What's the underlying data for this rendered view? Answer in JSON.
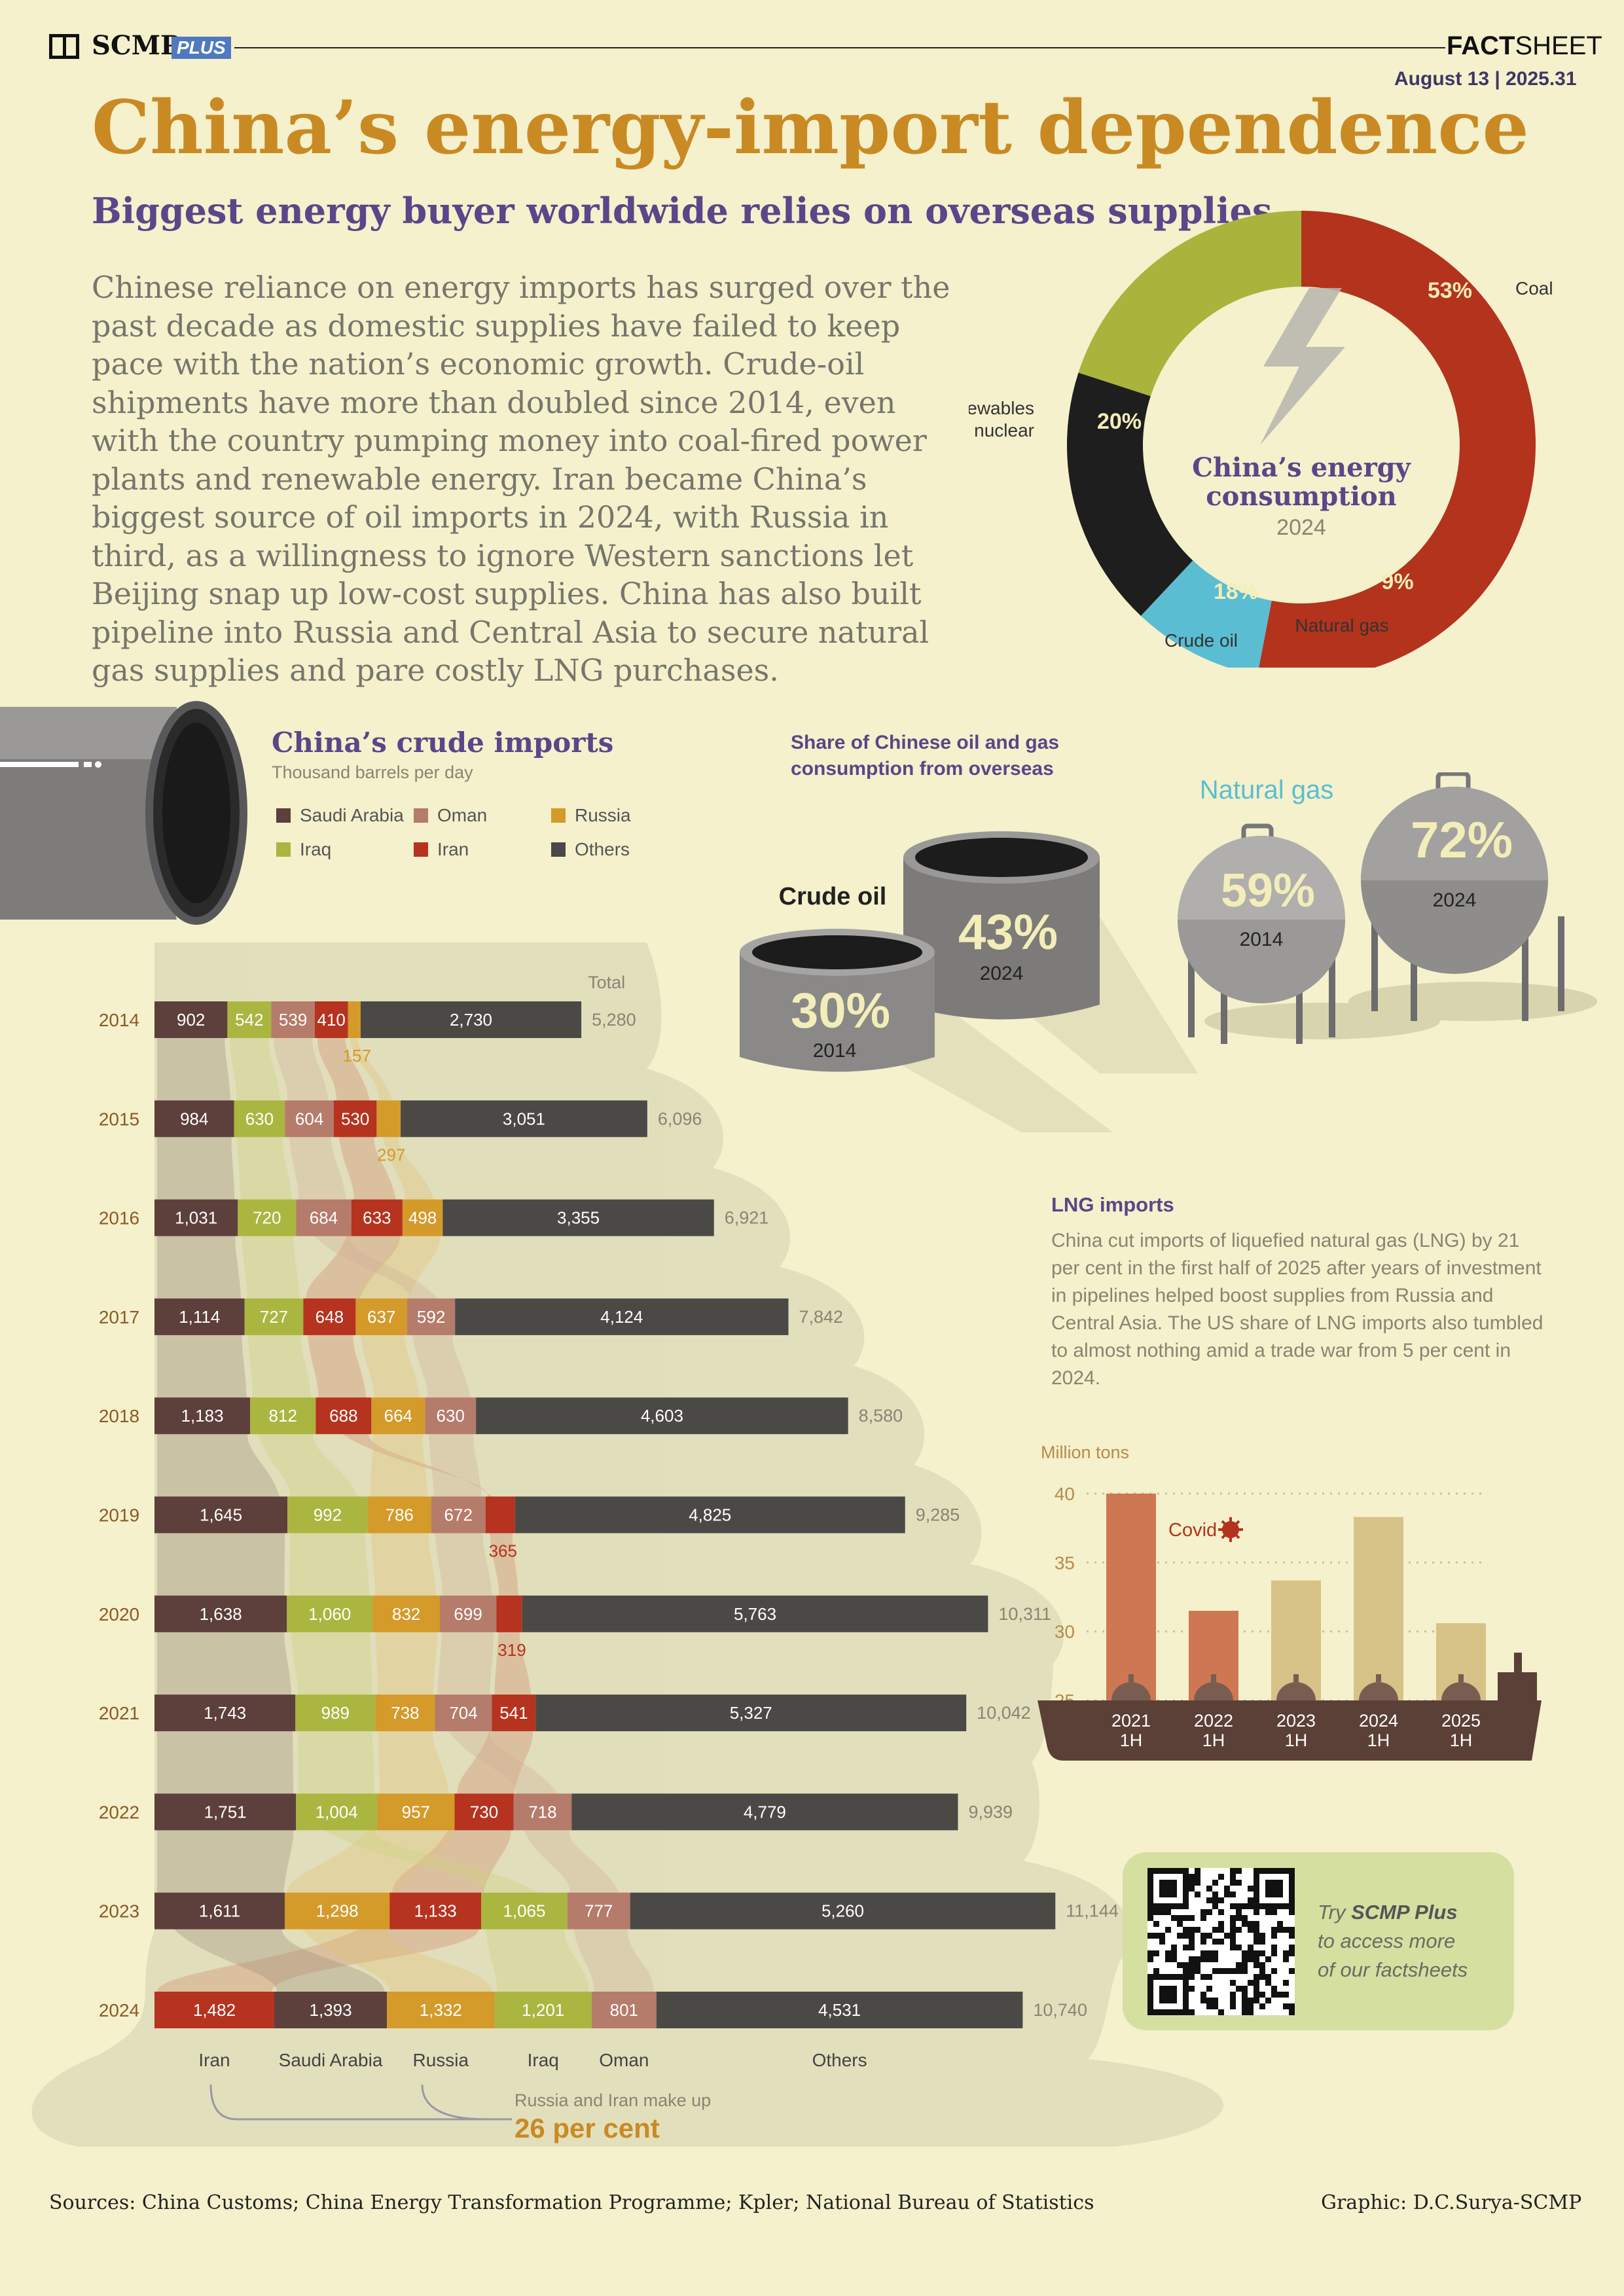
{
  "header": {
    "brand": "SCMP",
    "brand_badge": "PLUS",
    "sheet_label_bold": "FACT",
    "sheet_label": "SHEET",
    "date": "August 13 | 2025.31"
  },
  "title": "China’s energy-import dependence",
  "subtitle": "Biggest energy buyer worldwide relies on overseas supplies",
  "intro": "Chinese reliance on energy imports has surged over the past decade as domestic supplies have failed to keep pace with the nation’s economic growth. Crude-oil shipments have more than doubled since 2014, even with the country pumping money into coal-fired power plants and renewable energy. Iran became China’s biggest source of oil imports in 2024, with Russia in third, as a willingness to ignore Western sanctions let Beijing snap up low-cost supplies. China has also built pipeline into Russia and Central Asia to secure natural gas supplies and pare costly LNG purchases.",
  "colors": {
    "saudi": "#5d3f3b",
    "iraq": "#aab640",
    "oman": "#b57b6b",
    "iran": "#b5331f",
    "russia": "#d49a2a",
    "others": "#4b4946",
    "coal": "#b3331d",
    "natural_gas": "#5bbdd1",
    "crude_oil": "#1e1e1e",
    "renewables": "#a8b43c"
  },
  "chart_data": [
    {
      "type": "pie",
      "title": "China’s energy consumption",
      "subtitle": "2024",
      "labels": [
        "Coal",
        "Natural gas",
        "Crude oil",
        "Renewables and nuclear"
      ],
      "values": [
        53,
        9,
        18,
        20
      ],
      "value_labels": [
        "53%",
        "9%",
        "18%",
        "20%"
      ],
      "label_lines": [
        [
          "Coal"
        ],
        [
          "Natural gas"
        ],
        [
          "Crude oil"
        ],
        [
          "Renewables",
          "and nuclear"
        ]
      ]
    },
    {
      "type": "bar",
      "title": "China’s crude imports",
      "ylabel": "Thousand barrels per day",
      "total_label": "Total",
      "legend": [
        "Saudi Arabia",
        "Oman",
        "Russia",
        "Iraq",
        "Iran",
        "Others"
      ],
      "rows": [
        {
          "year": "2014",
          "total": "5,280",
          "segments": [
            {
              "k": "saudi",
              "v": 902
            },
            {
              "k": "iraq",
              "v": 542
            },
            {
              "k": "oman",
              "v": 539
            },
            {
              "k": "iran",
              "v": 410
            },
            {
              "k": "russia",
              "v": 157,
              "out": true
            },
            {
              "k": "others",
              "v": 2730
            }
          ]
        },
        {
          "year": "2015",
          "total": "6,096",
          "segments": [
            {
              "k": "saudi",
              "v": 984
            },
            {
              "k": "iraq",
              "v": 630
            },
            {
              "k": "oman",
              "v": 604
            },
            {
              "k": "iran",
              "v": 530
            },
            {
              "k": "russia",
              "v": 297,
              "out": true
            },
            {
              "k": "others",
              "v": 3051
            }
          ]
        },
        {
          "year": "2016",
          "total": "6,921",
          "segments": [
            {
              "k": "saudi",
              "v": 1031
            },
            {
              "k": "iraq",
              "v": 720
            },
            {
              "k": "oman",
              "v": 684
            },
            {
              "k": "iran",
              "v": 633
            },
            {
              "k": "russia",
              "v": 498
            },
            {
              "k": "others",
              "v": 3355
            }
          ]
        },
        {
          "year": "2017",
          "total": "7,842",
          "segments": [
            {
              "k": "saudi",
              "v": 1114
            },
            {
              "k": "iraq",
              "v": 727
            },
            {
              "k": "iran",
              "v": 648
            },
            {
              "k": "russia",
              "v": 637
            },
            {
              "k": "oman",
              "v": 592
            },
            {
              "k": "others",
              "v": 4124
            }
          ]
        },
        {
          "year": "2018",
          "total": "8,580",
          "segments": [
            {
              "k": "saudi",
              "v": 1183
            },
            {
              "k": "iraq",
              "v": 812
            },
            {
              "k": "iran",
              "v": 688
            },
            {
              "k": "russia",
              "v": 664
            },
            {
              "k": "oman",
              "v": 630
            },
            {
              "k": "others",
              "v": 4603
            }
          ]
        },
        {
          "year": "2019",
          "total": "9,285",
          "segments": [
            {
              "k": "saudi",
              "v": 1645
            },
            {
              "k": "iraq",
              "v": 992
            },
            {
              "k": "russia",
              "v": 786
            },
            {
              "k": "oman",
              "v": 672
            },
            {
              "k": "iran",
              "v": 365,
              "out": true
            },
            {
              "k": "others",
              "v": 4825
            }
          ]
        },
        {
          "year": "2020",
          "total": "10,311",
          "segments": [
            {
              "k": "saudi",
              "v": 1638
            },
            {
              "k": "iraq",
              "v": 1060
            },
            {
              "k": "russia",
              "v": 832
            },
            {
              "k": "oman",
              "v": 699
            },
            {
              "k": "iran",
              "v": 319,
              "out": true
            },
            {
              "k": "others",
              "v": 5763
            }
          ]
        },
        {
          "year": "2021",
          "total": "10,042",
          "segments": [
            {
              "k": "saudi",
              "v": 1743
            },
            {
              "k": "iraq",
              "v": 989
            },
            {
              "k": "russia",
              "v": 738
            },
            {
              "k": "oman",
              "v": 704
            },
            {
              "k": "iran",
              "v": 541
            },
            {
              "k": "others",
              "v": 5327
            }
          ]
        },
        {
          "year": "2022",
          "total": "9,939",
          "segments": [
            {
              "k": "saudi",
              "v": 1751
            },
            {
              "k": "iraq",
              "v": 1004
            },
            {
              "k": "russia",
              "v": 957
            },
            {
              "k": "iran",
              "v": 730
            },
            {
              "k": "oman",
              "v": 718
            },
            {
              "k": "others",
              "v": 4779
            }
          ]
        },
        {
          "year": "2023",
          "total": "11,144",
          "segments": [
            {
              "k": "saudi",
              "v": 1611
            },
            {
              "k": "russia",
              "v": 1298
            },
            {
              "k": "iran",
              "v": 1133
            },
            {
              "k": "iraq",
              "v": 1065
            },
            {
              "k": "oman",
              "v": 777
            },
            {
              "k": "others",
              "v": 5260
            }
          ]
        },
        {
          "year": "2024",
          "total": "10,740",
          "segments": [
            {
              "k": "iran",
              "v": 1482
            },
            {
              "k": "saudi",
              "v": 1393
            },
            {
              "k": "russia",
              "v": 1332
            },
            {
              "k": "iraq",
              "v": 1201
            },
            {
              "k": "oman",
              "v": 801
            },
            {
              "k": "others",
              "v": 4531
            }
          ]
        }
      ],
      "bottom_labels": [
        "Iran",
        "Saudi Arabia",
        "Russia",
        "Iraq",
        "Oman",
        "Others"
      ],
      "annotation_line1": "Russia and Iran make up",
      "annotation_line2": "26 per cent"
    },
    {
      "type": "bar",
      "title": "Share of Chinese oil and gas consumption from overseas",
      "title_lines": [
        "Share of Chinese oil and gas",
        "consumption from overseas"
      ],
      "series": [
        {
          "name": "Crude oil",
          "values": [
            {
              "year": "2014",
              "label": "30%",
              "v": 30
            },
            {
              "year": "2024",
              "label": "43%",
              "v": 43
            }
          ]
        },
        {
          "name": "Natural gas",
          "values": [
            {
              "year": "2014",
              "label": "59%",
              "v": 59
            },
            {
              "year": "2024",
              "label": "72%",
              "v": 72
            }
          ]
        }
      ]
    },
    {
      "type": "bar",
      "title": "LNG imports",
      "ylabel": "Million tons",
      "ylim": [
        25,
        40
      ],
      "yticks": [
        25,
        30,
        35,
        40
      ],
      "categories": [
        [
          "2021",
          "1H"
        ],
        [
          "2022",
          "1H"
        ],
        [
          "2023",
          "1H"
        ],
        [
          "2024",
          "1H"
        ],
        [
          "2025",
          "1H"
        ]
      ],
      "values": [
        40,
        31.5,
        33.7,
        38.3,
        30.6
      ],
      "annotation": "Covid"
    }
  ],
  "lng_text": "China cut imports of liquefied natural gas (LNG) by 21 per cent in the first half of 2025 after years of investment in pipelines helped boost supplies from Russia and Central Asia. The US share of LNG imports also tumbled to almost nothing amid a trade war from 5 per cent in 2024.",
  "promo": {
    "pre": "Try ",
    "brand": "SCMP Plus",
    "line2": "to access more",
    "line3": "of our factsheets"
  },
  "footer": {
    "sources": "Sources: China Customs; China Energy Transformation Programme; Kpler; National Bureau of Statistics",
    "credit": "Graphic: D.C.Surya-SCMP"
  }
}
